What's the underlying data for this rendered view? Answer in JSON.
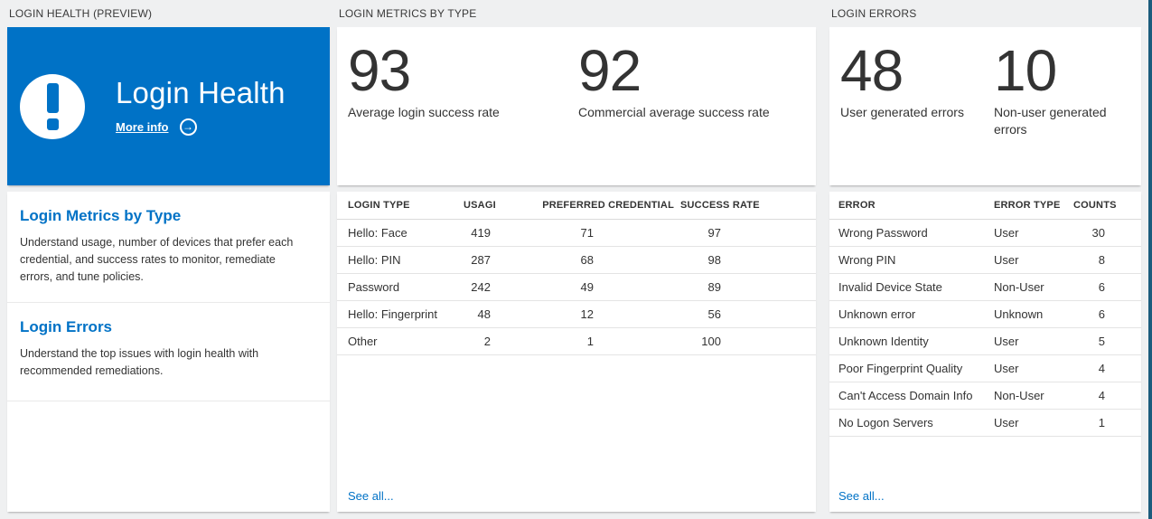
{
  "theme": {
    "accent": "#0072C6",
    "page_bg": "#EFF0F1",
    "card_bg": "#FFFFFF",
    "text_dark": "#333333",
    "edge_bar": "#1B5C7D"
  },
  "columns": {
    "login_health": {
      "header": "LOGIN HEALTH (PREVIEW)",
      "hero": {
        "title": "Login Health",
        "more_info_label": "More info",
        "icon": "exclamation-icon",
        "arrow_icon": "arrow-right-circle-icon"
      },
      "sections": [
        {
          "title": "Login Metrics by Type",
          "description": "Understand usage, number of devices that prefer each credential, and success rates to monitor, remediate errors, and tune policies."
        },
        {
          "title": "Login Errors",
          "description": "Understand the top issues with login health with recommended remediations."
        }
      ]
    },
    "login_metrics": {
      "header": "LOGIN METRICS BY TYPE",
      "stats": [
        {
          "value": "93",
          "label": "Average login success rate"
        },
        {
          "value": "92",
          "label": "Commercial average success rate"
        }
      ],
      "table": {
        "columns": [
          "LOGIN TYPE",
          "USAGE",
          "PREFERRED CREDENTIAL",
          "SUCCESS RATE"
        ],
        "rows": [
          [
            "Hello: Face",
            "419",
            "71",
            "97"
          ],
          [
            "Hello: PIN",
            "287",
            "68",
            "98"
          ],
          [
            "Password",
            "242",
            "49",
            "89"
          ],
          [
            "Hello: Fingerprint",
            "48",
            "12",
            "56"
          ],
          [
            "Other",
            "2",
            "1",
            "100"
          ]
        ]
      },
      "see_all_label": "See all..."
    },
    "login_errors": {
      "header": "LOGIN ERRORS",
      "stats": [
        {
          "value": "48",
          "label": "User generated errors"
        },
        {
          "value": "10",
          "label": "Non-user generated errors"
        }
      ],
      "table": {
        "columns": [
          "ERROR",
          "ERROR TYPE",
          "COUNTS"
        ],
        "rows": [
          [
            "Wrong Password",
            "User",
            "30"
          ],
          [
            "Wrong PIN",
            "User",
            "8"
          ],
          [
            "Invalid Device State",
            "Non-User",
            "6"
          ],
          [
            "Unknown error",
            "Unknown",
            "6"
          ],
          [
            "Unknown Identity",
            "User",
            "5"
          ],
          [
            "Poor Fingerprint Quality",
            "User",
            "4"
          ],
          [
            "Can't Access Domain Info",
            "Non-User",
            "4"
          ],
          [
            "No Logon Servers",
            "User",
            "1"
          ]
        ]
      },
      "see_all_label": "See all..."
    }
  }
}
